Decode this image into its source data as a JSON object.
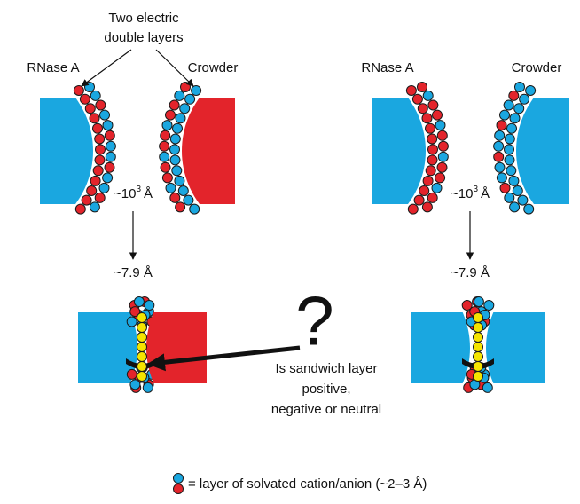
{
  "callout": {
    "lines": [
      "Two electric",
      "double layers"
    ]
  },
  "panels": [
    {
      "left_label": "RNase A",
      "right_label": "Crowder",
      "far_distance": {
        "base": "~10",
        "sup": "3",
        "unit": "Å"
      },
      "near_distance": "~7.9 Å"
    },
    {
      "left_label": "RNase A",
      "right_label": "Crowder",
      "far_distance": {
        "base": "~10",
        "sup": "3",
        "unit": "Å"
      },
      "near_distance": "~7.9 Å"
    }
  ],
  "question": {
    "mark": "?",
    "lines": [
      "Is sandwich layer",
      "positive,",
      "negative or neutral"
    ]
  },
  "legend": "= layer of solvated cation/anion (~2–3 Å)"
}
